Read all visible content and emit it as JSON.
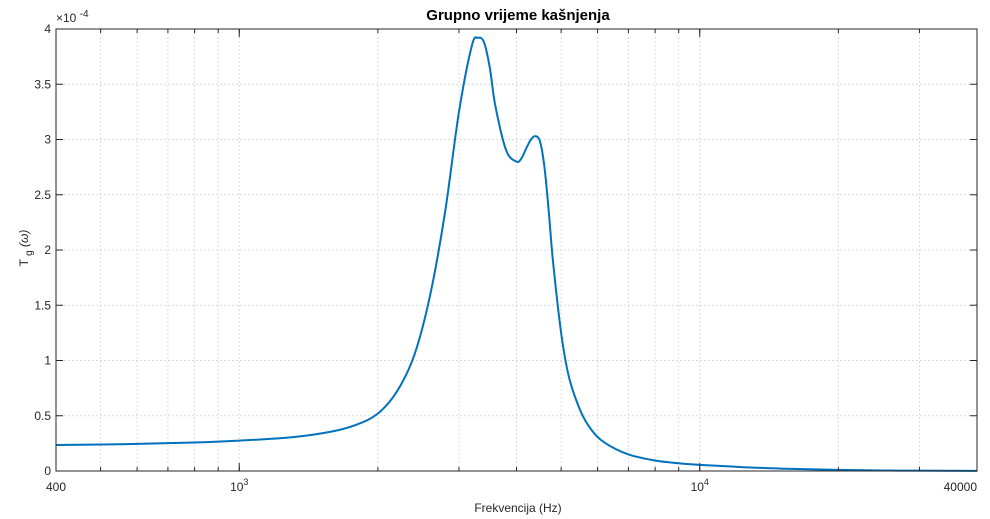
{
  "chart_data": {
    "type": "line",
    "title": "Grupno vrijeme kašnjenja",
    "xlabel": "Frekvencija (Hz)",
    "ylabel": {
      "base": "T",
      "sub": "g",
      "arg": "(ω)"
    },
    "x_scale": "log",
    "xlim": [
      400,
      40000
    ],
    "ylim": [
      0,
      0.0004
    ],
    "y_exponent_label": "×10",
    "y_exponent_power": "-4",
    "grid": true,
    "x_ticks": [
      {
        "value": 400,
        "label": "400"
      },
      {
        "value": 1000,
        "base": "10",
        "power": "3"
      },
      {
        "value": 10000,
        "base": "10",
        "power": "4"
      },
      {
        "value": 40000,
        "label": "40000"
      }
    ],
    "y_ticks": [
      {
        "value": 0,
        "label": "0"
      },
      {
        "value": 5e-05,
        "label": "0.5"
      },
      {
        "value": 0.0001,
        "label": "1"
      },
      {
        "value": 0.00015,
        "label": "1.5"
      },
      {
        "value": 0.0002,
        "label": "2"
      },
      {
        "value": 0.00025,
        "label": "2.5"
      },
      {
        "value": 0.0003,
        "label": "3"
      },
      {
        "value": 0.00035,
        "label": "3.5"
      },
      {
        "value": 0.0004,
        "label": "4"
      }
    ],
    "series": [
      {
        "color": "#0072BD",
        "x": [
          400,
          600,
          800,
          1000,
          1300,
          1600,
          1800,
          2000,
          2200,
          2400,
          2600,
          2800,
          3000,
          3200,
          3300,
          3400,
          3500,
          3600,
          3800,
          4000,
          4100,
          4200,
          4300,
          4400,
          4500,
          4600,
          4700,
          4800,
          5000,
          5200,
          5500,
          5800,
          6200,
          7000,
          8000,
          9000,
          10000,
          12000,
          15000,
          20000,
          25000,
          30000,
          40000
        ],
        "y": [
          2.35e-05,
          2.45e-05,
          2.58e-05,
          2.75e-05,
          3.05e-05,
          3.6e-05,
          4.2e-05,
          5.2e-05,
          7.2e-05,
          0.000105,
          0.00016,
          0.000235,
          0.000325,
          0.000385,
          0.000392,
          0.000388,
          0.000365,
          0.00033,
          0.00029,
          0.00028,
          0.000283,
          0.000292,
          0.0003,
          0.000303,
          0.000298,
          0.000275,
          0.000235,
          0.00019,
          0.000125,
          8.5e-05,
          5.5e-05,
          3.8e-05,
          2.6e-05,
          1.5e-05,
          9.5e-06,
          7e-06,
          5.5e-06,
          3.8e-06,
          2.2e-06,
          1e-06,
          5e-07,
          3e-07,
          1e-07
        ]
      }
    ]
  }
}
